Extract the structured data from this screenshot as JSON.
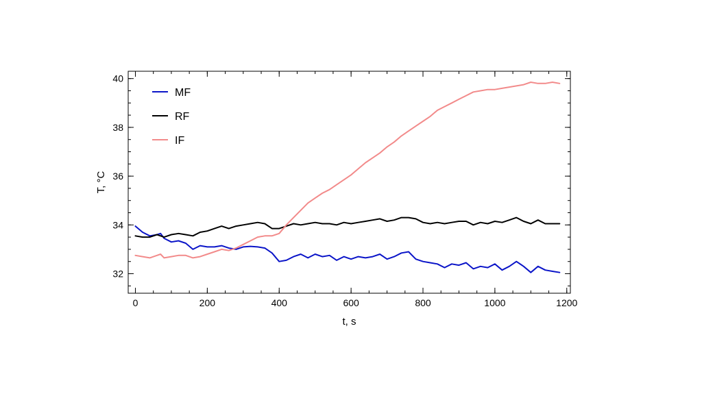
{
  "chart_data": {
    "type": "line",
    "xlabel": "t, s",
    "ylabel": "T, °C",
    "xlim": [
      -20,
      1210
    ],
    "ylim": [
      31.2,
      40.3
    ],
    "xticks": [
      0,
      200,
      400,
      600,
      800,
      1000,
      1200
    ],
    "yticks": [
      32,
      34,
      36,
      38,
      40
    ],
    "x_minor_step": 50,
    "y_minor_step": 0.5,
    "grid": false,
    "legend_position": "top-left",
    "series": [
      {
        "name": "MF",
        "color": "#0a14c8",
        "x": [
          0,
          20,
          40,
          60,
          70,
          80,
          100,
          120,
          140,
          160,
          180,
          200,
          220,
          240,
          260,
          280,
          300,
          320,
          340,
          360,
          380,
          400,
          420,
          440,
          460,
          480,
          500,
          520,
          540,
          560,
          580,
          600,
          620,
          640,
          660,
          680,
          700,
          720,
          740,
          760,
          780,
          800,
          820,
          840,
          860,
          880,
          900,
          920,
          940,
          960,
          980,
          1000,
          1020,
          1040,
          1060,
          1080,
          1100,
          1120,
          1140,
          1160,
          1180
        ],
        "values": [
          33.95,
          33.7,
          33.55,
          33.6,
          33.65,
          33.45,
          33.3,
          33.35,
          33.25,
          33.0,
          33.15,
          33.1,
          33.1,
          33.15,
          33.05,
          33.0,
          33.1,
          33.12,
          33.1,
          33.05,
          32.85,
          32.5,
          32.55,
          32.7,
          32.8,
          32.65,
          32.8,
          32.7,
          32.75,
          32.55,
          32.7,
          32.6,
          32.7,
          32.65,
          32.7,
          32.8,
          32.6,
          32.7,
          32.85,
          32.9,
          32.6,
          32.5,
          32.45,
          32.4,
          32.25,
          32.4,
          32.35,
          32.45,
          32.2,
          32.3,
          32.25,
          32.4,
          32.15,
          32.3,
          32.5,
          32.3,
          32.05,
          32.3,
          32.15,
          32.1,
          32.05
        ]
      },
      {
        "name": "RF",
        "color": "#000000",
        "x": [
          0,
          20,
          40,
          60,
          70,
          80,
          100,
          120,
          140,
          160,
          180,
          200,
          220,
          240,
          260,
          280,
          300,
          320,
          340,
          360,
          380,
          400,
          420,
          440,
          460,
          480,
          500,
          520,
          540,
          560,
          580,
          600,
          620,
          640,
          660,
          680,
          700,
          720,
          740,
          760,
          780,
          800,
          820,
          840,
          860,
          880,
          900,
          920,
          940,
          960,
          980,
          1000,
          1020,
          1040,
          1060,
          1080,
          1100,
          1120,
          1140,
          1160,
          1180
        ],
        "values": [
          33.55,
          33.5,
          33.5,
          33.6,
          33.55,
          33.5,
          33.6,
          33.65,
          33.6,
          33.55,
          33.7,
          33.75,
          33.85,
          33.95,
          33.85,
          33.95,
          34.0,
          34.05,
          34.1,
          34.05,
          33.85,
          33.85,
          33.95,
          34.05,
          34.0,
          34.05,
          34.1,
          34.05,
          34.05,
          34.0,
          34.1,
          34.05,
          34.1,
          34.15,
          34.2,
          34.25,
          34.15,
          34.2,
          34.3,
          34.3,
          34.25,
          34.1,
          34.05,
          34.1,
          34.05,
          34.1,
          34.15,
          34.15,
          34.0,
          34.1,
          34.05,
          34.15,
          34.1,
          34.2,
          34.3,
          34.15,
          34.05,
          34.2,
          34.05,
          34.05,
          34.05
        ]
      },
      {
        "name": "IF",
        "color": "#f28a8a",
        "x": [
          0,
          20,
          40,
          60,
          70,
          80,
          100,
          120,
          140,
          160,
          180,
          200,
          220,
          240,
          260,
          280,
          300,
          320,
          340,
          360,
          380,
          400,
          420,
          440,
          460,
          480,
          500,
          520,
          540,
          560,
          580,
          600,
          620,
          640,
          660,
          680,
          700,
          720,
          740,
          760,
          780,
          800,
          820,
          840,
          860,
          880,
          900,
          920,
          940,
          960,
          980,
          1000,
          1020,
          1040,
          1060,
          1080,
          1100,
          1120,
          1140,
          1160,
          1180
        ],
        "values": [
          32.75,
          32.7,
          32.65,
          32.75,
          32.8,
          32.65,
          32.7,
          32.75,
          32.75,
          32.65,
          32.7,
          32.8,
          32.9,
          33.0,
          32.95,
          33.05,
          33.2,
          33.35,
          33.5,
          33.55,
          33.55,
          33.65,
          34.0,
          34.3,
          34.6,
          34.9,
          35.1,
          35.3,
          35.45,
          35.65,
          35.85,
          36.05,
          36.3,
          36.55,
          36.75,
          36.95,
          37.2,
          37.4,
          37.65,
          37.85,
          38.05,
          38.25,
          38.45,
          38.7,
          38.85,
          39.0,
          39.15,
          39.3,
          39.45,
          39.5,
          39.55,
          39.55,
          39.6,
          39.65,
          39.7,
          39.75,
          39.85,
          39.8,
          39.8,
          39.85,
          39.8
        ]
      }
    ]
  }
}
